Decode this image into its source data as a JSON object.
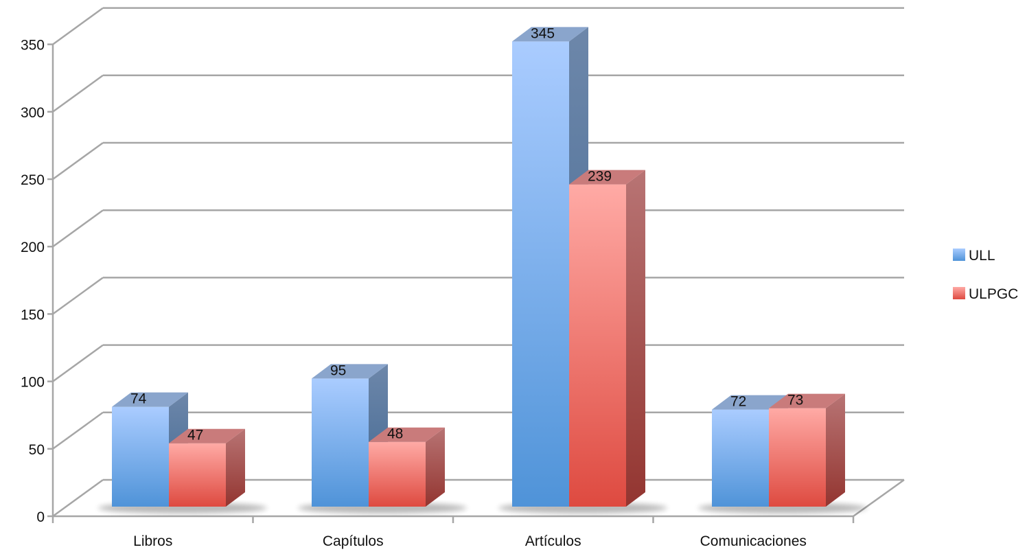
{
  "chart_data": {
    "type": "bar",
    "categories": [
      "Libros",
      "Capítulos",
      "Artículos",
      "Comunicaciones"
    ],
    "series": [
      {
        "name": "ULL",
        "values": [
          74,
          95,
          345,
          72
        ],
        "color": "#5b9bd5"
      },
      {
        "name": "ULPGC",
        "values": [
          47,
          48,
          239,
          73
        ],
        "color": "#e3534a"
      }
    ],
    "y_ticks": [
      "0",
      "50",
      "100",
      "150",
      "200",
      "250",
      "300",
      "350"
    ],
    "ylim": [
      0,
      350
    ],
    "grid": true,
    "legend": "right",
    "three_d": true
  }
}
